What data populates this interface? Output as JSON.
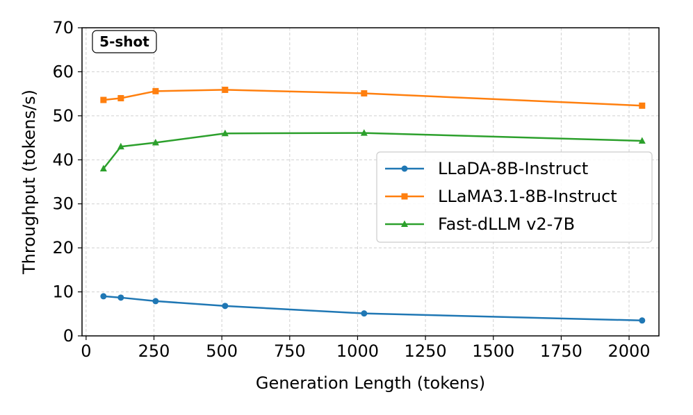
{
  "chart_data": {
    "type": "line",
    "title": "",
    "annotation": "5-shot",
    "xlabel": "Generation Length (tokens)",
    "ylabel": "Throughput (tokens/s)",
    "xlim": [
      -15,
      2110
    ],
    "ylim": [
      0,
      70
    ],
    "xticks": [
      0,
      250,
      500,
      750,
      1000,
      1250,
      1500,
      1750,
      2000
    ],
    "yticks": [
      0,
      10,
      20,
      30,
      40,
      50,
      60,
      70
    ],
    "grid": true,
    "legend_position": "center-right",
    "series": [
      {
        "name": "LLaDA-8B-Instruct",
        "color": "#1f77b4",
        "marker": "circle",
        "x": [
          64,
          128,
          256,
          512,
          1024,
          2048
        ],
        "y": [
          9.0,
          8.7,
          7.9,
          6.8,
          5.1,
          3.5
        ]
      },
      {
        "name": "LLaMA3.1-8B-Instruct",
        "color": "#ff7f0e",
        "marker": "square",
        "x": [
          64,
          128,
          256,
          512,
          1024,
          2048
        ],
        "y": [
          53.6,
          54.0,
          55.6,
          55.9,
          55.1,
          52.3
        ]
      },
      {
        "name": "Fast-dLLM v2-7B",
        "color": "#2ca02c",
        "marker": "triangle",
        "x": [
          64,
          128,
          256,
          512,
          1024,
          2048
        ],
        "y": [
          38.0,
          43.0,
          43.9,
          46.0,
          46.1,
          44.3
        ]
      }
    ]
  }
}
